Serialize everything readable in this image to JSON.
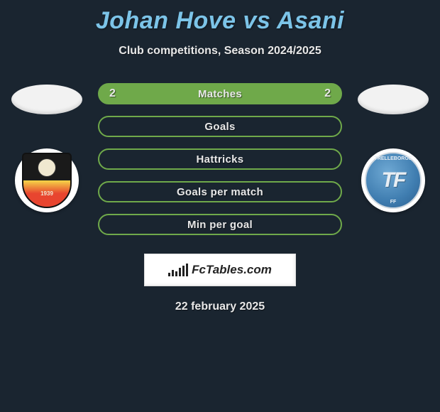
{
  "title": "Johan Hove vs Asani",
  "subtitle": "Club competitions, Season 2024/2025",
  "date": "22 february 2025",
  "logo_text": "FcTables.com",
  "left_club_badge_year": "1939",
  "right_club_tf": "TF",
  "right_club_top": "TRELLEBORGS",
  "right_club_bot": "FF",
  "stats": {
    "type": "comparison-bars",
    "pill_height": 30,
    "pill_gap": 16,
    "fill_color": "#6fa94a",
    "border_color": "#6fa94a",
    "label_color": "#e8e8e8",
    "label_fontsize": 15,
    "value_fontsize": 16,
    "rows": [
      {
        "label": "Matches",
        "left": "2",
        "right": "2",
        "filled": true
      },
      {
        "label": "Goals",
        "left": "",
        "right": "",
        "filled": false
      },
      {
        "label": "Hattricks",
        "left": "",
        "right": "",
        "filled": false
      },
      {
        "label": "Goals per match",
        "left": "",
        "right": "",
        "filled": false
      },
      {
        "label": "Min per goal",
        "left": "",
        "right": "",
        "filled": false
      }
    ]
  },
  "colors": {
    "background": "#1a2530",
    "title": "#7cc4e8",
    "text": "#e8e8e8",
    "ellipse_bg": "#f2f2f2",
    "logo_box_bg": "#ffffff"
  },
  "logo_bars_heights": [
    5,
    9,
    7,
    12,
    15,
    18
  ]
}
